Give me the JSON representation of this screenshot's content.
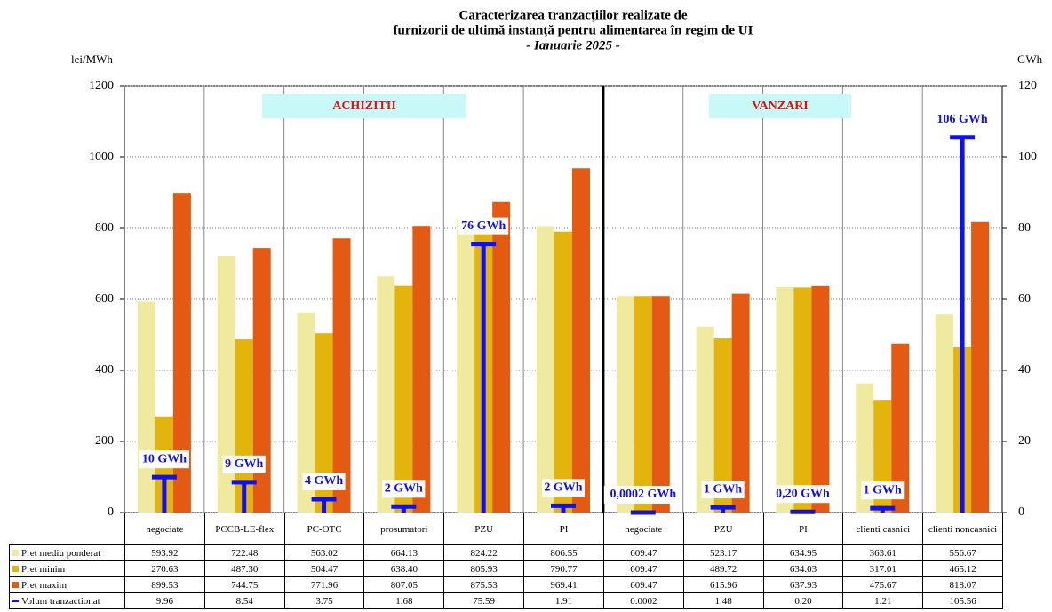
{
  "chart_data": {
    "type": "bar",
    "title": [
      "Caracterizarea tranzacţiilor realizate de",
      "furnizorii de ultimă instanţă pentru alimentarea în regim de UI",
      "- Ianuarie 2025 -"
    ],
    "y_label": "lei/MWh",
    "y2_label": "GWh",
    "annotations": [
      "ACHIZITII",
      "VANZARI"
    ],
    "categories": [
      "negociate",
      "PCCB-LE-flex",
      "PC-OTC",
      "prosumatori",
      "PZU",
      "PI",
      "negociate",
      "PZU",
      "PI",
      "clienti casnici",
      "clienti noncasnici"
    ],
    "ylim": [
      0,
      1200
    ],
    "yticks": [
      0,
      200,
      400,
      600,
      800,
      1000,
      1200
    ],
    "y2lim": [
      0,
      120
    ],
    "y2ticks": [
      0,
      20,
      40,
      60,
      80,
      100,
      120
    ],
    "grid": true,
    "series": [
      {
        "name": "Pret mediu ponderat",
        "color": "#efeaa0",
        "values": [
          593.92,
          722.48,
          563.02,
          664.13,
          824.22,
          806.55,
          609.47,
          523.17,
          634.95,
          363.61,
          556.67
        ],
        "value_labels": [
          "593.92",
          "722.48",
          "563.02",
          "664.13",
          "824.22",
          "806.55",
          "609.47",
          "523.17",
          "634.95",
          "363.61",
          "556.67"
        ]
      },
      {
        "name": "Pret minim",
        "color": "#e3b40c",
        "values": [
          270.63,
          487.3,
          504.47,
          638.4,
          805.93,
          790.77,
          609.47,
          489.72,
          634.03,
          317.01,
          465.12
        ],
        "value_labels": [
          "270.63",
          "487.30",
          "504.47",
          "638.40",
          "805.93",
          "790.77",
          "609.47",
          "489.72",
          "634.03",
          "317.01",
          "465.12"
        ]
      },
      {
        "name": "Pret maxim",
        "color": "#e45a12",
        "values": [
          899.53,
          744.75,
          771.96,
          807.05,
          875.53,
          969.41,
          609.47,
          615.96,
          637.93,
          475.67,
          818.07
        ],
        "value_labels": [
          "899.53",
          "744.75",
          "771.96",
          "807.05",
          "875.53",
          "969.41",
          "609.47",
          "615.96",
          "637.93",
          "475.67",
          "818.07"
        ]
      },
      {
        "name": "Volum tranzactionat",
        "color": "#1010ee",
        "axis": "y2",
        "values": [
          9.96,
          8.54,
          3.75,
          1.68,
          75.59,
          1.91,
          0.0002,
          1.48,
          0.2,
          1.21,
          105.56
        ],
        "value_labels": [
          "9.96",
          "8.54",
          "3.75",
          "1.68",
          "75.59",
          "1.91",
          "0.0002",
          "1.48",
          "0.20",
          "1.21",
          "105.56"
        ],
        "data_labels": [
          "10 GWh",
          "9 GWh",
          "4 GWh",
          "2 GWh",
          "76 GWh",
          "2 GWh",
          "0,0002 GWh",
          "1 GWh",
          "0,20 GWh",
          "1 GWh",
          "106 GWh"
        ]
      }
    ]
  }
}
